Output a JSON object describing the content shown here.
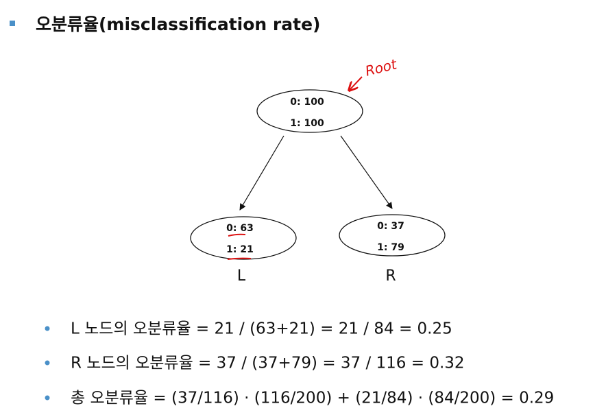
{
  "title": "오분류율(misclassification rate)",
  "annotation": "Root",
  "nodes": [
    {
      "lines": [
        "0: 100",
        "1: 100"
      ]
    },
    {
      "lines": [
        "0: 63",
        "1: 21"
      ],
      "label": "L"
    },
    {
      "lines": [
        "0: 37",
        "1: 79"
      ],
      "label": "R"
    }
  ],
  "bullets": [
    "L 노드의 오분류율 = 21 / (63+21) = 21 / 84 = 0.25",
    "R 노드의 오분류율 = 37 / (37+79) = 37 / 116 = 0.32",
    "총 오분류율 = (37/116) · (116/200) + (21/84) · (84/200) = 0.29"
  ]
}
